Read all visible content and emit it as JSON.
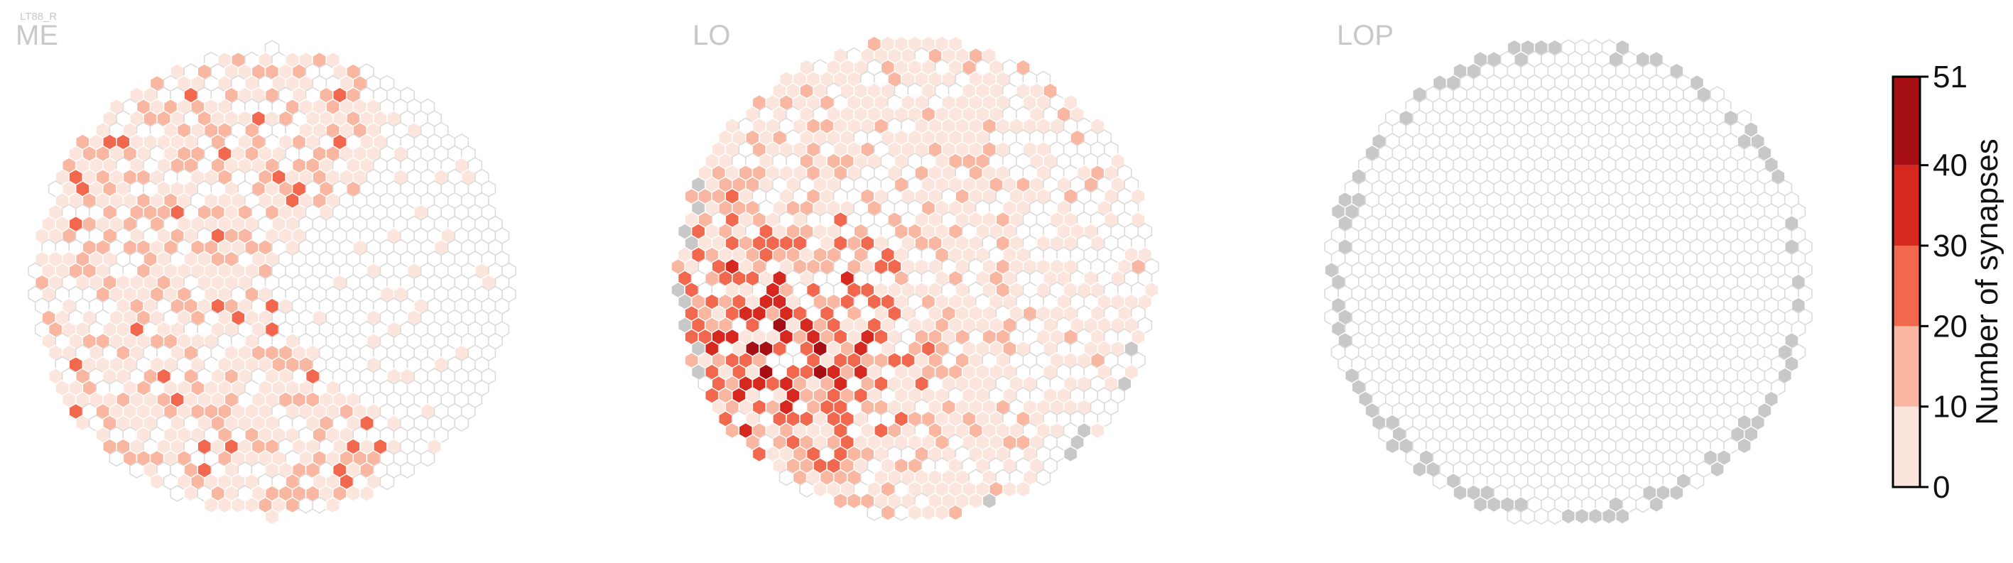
{
  "figure": {
    "cell_type_label": "LT88_R",
    "panels": [
      {
        "title": "ME"
      },
      {
        "title": "LO"
      },
      {
        "title": "LOP"
      }
    ]
  },
  "colors": {
    "no_synapse_fill": "#ffffff",
    "no_synapse_edge": "#d9d9d9",
    "grey_column_fill": "#c8c8c8",
    "bins": [
      "#fbe5dd",
      "#f9b7a2",
      "#f2684f",
      "#d7281f",
      "#a60f14"
    ]
  },
  "chart_data": {
    "type": "heatmap",
    "layout": "hexagonal columns per neuropil",
    "panels": [
      "ME",
      "LO",
      "LOP"
    ],
    "colorbar": {
      "title": "Number of synapses",
      "ticks": [
        0,
        10,
        20,
        30,
        40,
        51
      ],
      "tick_labels": [
        "0",
        "10",
        "20",
        "30",
        "40",
        "51"
      ],
      "bins": [
        [
          0,
          10
        ],
        [
          10,
          20
        ],
        [
          20,
          30
        ],
        [
          30,
          40
        ],
        [
          40,
          51
        ]
      ],
      "range": [
        0,
        51
      ]
    },
    "summary": {
      "ME": "many low-count columns (0-20) on the left/center, a few 20-30",
      "LO": "low counts widespread, highest counts (30-51) clustered lower-left",
      "LOP": "no synapses; grey columns along the border"
    }
  }
}
